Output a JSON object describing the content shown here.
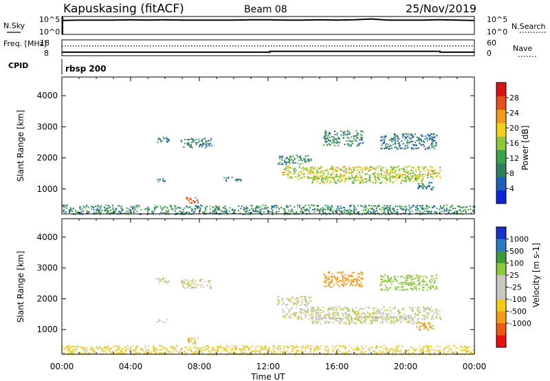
{
  "header": {
    "station": "Kapuskasing (fitACF)",
    "beam": "Beam 08",
    "date": "25/Nov/2019"
  },
  "colors": {
    "power_scale": [
      "#0b24d8",
      "#1f5fb8",
      "#2f7f5a",
      "#3aa24a",
      "#8fc93a",
      "#f0d21e",
      "#f49a1a",
      "#e8501a",
      "#d81515"
    ],
    "velocity_scale": [
      "#e81212",
      "#ef5a12",
      "#f49c1a",
      "#f0cc1a",
      "#c8c8c0",
      "#c8c8c0",
      "#8cc83c",
      "#3e9a3a",
      "#2a7ac0",
      "#1830c8"
    ]
  },
  "chart_data": [
    {
      "id": "nsky",
      "type": "line",
      "left_label": "N.Sky",
      "right_label": "N.Search",
      "left_ticks": [
        "10^5",
        "10^0"
      ],
      "right_ticks": [
        "10^5",
        "10^0"
      ],
      "ylim": [
        0,
        5
      ],
      "x_hours": [
        0,
        1,
        2,
        3,
        4,
        5,
        6,
        7,
        8,
        9,
        10,
        11,
        12,
        13,
        14,
        15,
        16,
        17,
        18,
        19,
        20,
        21,
        22,
        23,
        24
      ],
      "values": [
        3.9,
        4.0,
        4.0,
        4.0,
        4.1,
        4.0,
        4.1,
        4.0,
        4.0,
        4.0,
        4.0,
        4.1,
        4.1,
        4.0,
        4.0,
        4.1,
        4.0,
        4.1,
        4.3,
        4.0,
        4.0,
        4.0,
        4.1,
        4.0,
        3.9
      ]
    },
    {
      "id": "freq",
      "type": "line",
      "left_label": "Freq. [MHz]",
      "right_label": "Nave",
      "left_ticks": [
        "18",
        "8"
      ],
      "right_ticks": [
        "60",
        "0"
      ],
      "freq_ylim": [
        8,
        18
      ],
      "x_hours": [
        0,
        12.1,
        12.1,
        22,
        22,
        24
      ],
      "freq_values": [
        10.2,
        10.2,
        10.8,
        10.8,
        10.2,
        10.2
      ],
      "nave_ylim": [
        0,
        60
      ],
      "nave_values": [
        37,
        37,
        37,
        37,
        37,
        37
      ]
    },
    {
      "id": "cpid",
      "type": "table",
      "label": "CPID",
      "value": "rbsp 200"
    },
    {
      "id": "power",
      "type": "heatmap",
      "ylabel": "Slant Range [km]",
      "yticks": [
        1000,
        2000,
        3000,
        4000
      ],
      "ylim": [
        200,
        4600
      ],
      "xlim_hours": [
        0,
        24
      ],
      "colorbar_label": "Power [dB]",
      "colorbar_ticks": [
        "4",
        "8",
        "12",
        "16",
        "20",
        "24",
        "28"
      ],
      "colorbar_range": [
        0,
        32
      ],
      "echo_regions": [
        {
          "t0": 5.4,
          "t1": 6.2,
          "r0": 2500,
          "r1": 2700,
          "value": 8
        },
        {
          "t0": 6.9,
          "t1": 8.7,
          "r0": 2350,
          "r1": 2650,
          "value": 8
        },
        {
          "t0": 5.5,
          "t1": 6.2,
          "r0": 1250,
          "r1": 1350,
          "value": 8
        },
        {
          "t0": 9.4,
          "t1": 10.4,
          "r0": 1250,
          "r1": 1400,
          "value": 8
        },
        {
          "t0": 7.2,
          "t1": 7.9,
          "r0": 550,
          "r1": 750,
          "value": 28
        },
        {
          "t0": 0,
          "t1": 24,
          "r0": 200,
          "r1": 500,
          "value": 10
        },
        {
          "t0": 12.8,
          "t1": 22,
          "r0": 1350,
          "r1": 1750,
          "value": 18
        },
        {
          "t0": 14.5,
          "t1": 21,
          "r0": 1200,
          "r1": 1450,
          "value": 16
        },
        {
          "t0": 15.2,
          "t1": 17.5,
          "r0": 2400,
          "r1": 2900,
          "value": 10
        },
        {
          "t0": 18.5,
          "t1": 21.8,
          "r0": 2300,
          "r1": 2800,
          "value": 8
        },
        {
          "t0": 12.5,
          "t1": 14.5,
          "r0": 1800,
          "r1": 2100,
          "value": 10
        },
        {
          "t0": 20.6,
          "t1": 21.6,
          "r0": 1000,
          "r1": 1250,
          "value": 8
        }
      ]
    },
    {
      "id": "velocity",
      "type": "heatmap",
      "ylabel": "Slant Range [km]",
      "yticks": [
        1000,
        2000,
        3000,
        4000
      ],
      "ylim": [
        200,
        4600
      ],
      "xlim_hours": [
        0,
        24
      ],
      "xlabel": "Time UT",
      "xticks": [
        "00:00",
        "04:00",
        "08:00",
        "12:00",
        "16:00",
        "20:00",
        "00:00"
      ],
      "colorbar_label": "Velocity [m s-1]",
      "colorbar_ticks": [
        "-1000",
        "-500",
        "-100",
        "-25",
        "25",
        "100",
        "500",
        "1000"
      ],
      "echo_regions": [
        {
          "t0": 5.4,
          "t1": 6.2,
          "r0": 2500,
          "r1": 2700,
          "value": 0
        },
        {
          "t0": 6.9,
          "t1": 8.7,
          "r0": 2350,
          "r1": 2650,
          "value": 0
        },
        {
          "t0": 5.5,
          "t1": 6.2,
          "r0": 1250,
          "r1": 1350,
          "value": 0
        },
        {
          "t0": 7.2,
          "t1": 7.9,
          "r0": 550,
          "r1": 750,
          "value": -100
        },
        {
          "t0": 0,
          "t1": 24,
          "r0": 200,
          "r1": 500,
          "value": -50
        },
        {
          "t0": 12.8,
          "t1": 22,
          "r0": 1350,
          "r1": 1750,
          "value": 0
        },
        {
          "t0": 14.5,
          "t1": 21,
          "r0": 1200,
          "r1": 1450,
          "value": 0
        },
        {
          "t0": 15.2,
          "t1": 17.5,
          "r0": 2400,
          "r1": 2900,
          "value": -300
        },
        {
          "t0": 18.5,
          "t1": 21.8,
          "r0": 2300,
          "r1": 2800,
          "value": 60
        },
        {
          "t0": 12.5,
          "t1": 14.5,
          "r0": 1800,
          "r1": 2100,
          "value": 0
        },
        {
          "t0": 20.6,
          "t1": 21.6,
          "r0": 1000,
          "r1": 1250,
          "value": -200
        }
      ]
    }
  ]
}
